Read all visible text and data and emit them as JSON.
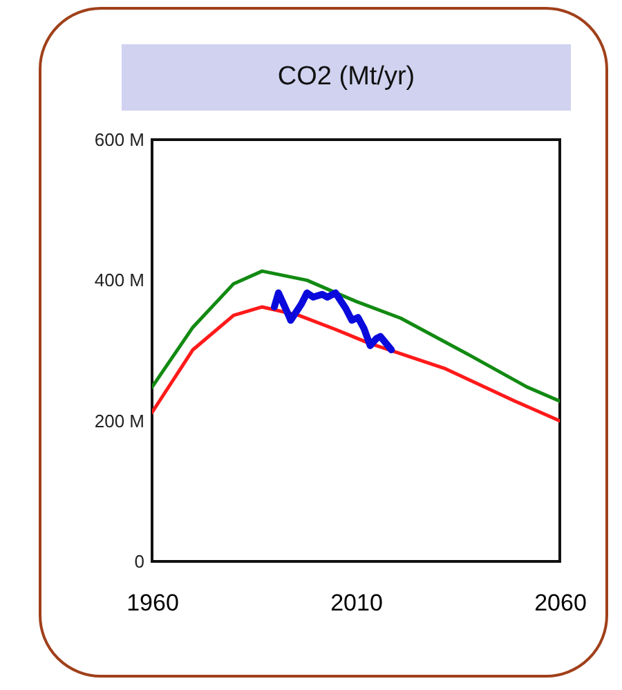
{
  "chart_data": {
    "type": "line",
    "title": "CO2 (Mt/yr)",
    "xlim": [
      1960,
      2060
    ],
    "xticks": [
      1960,
      2010,
      2060
    ],
    "ylim": [
      0,
      600
    ],
    "yticks": [
      {
        "value": 0,
        "label": "0"
      },
      {
        "value": 200,
        "label": "200 M"
      },
      {
        "value": 400,
        "label": "400 M"
      },
      {
        "value": 600,
        "label": "600 M"
      }
    ],
    "grid": false,
    "series": [
      {
        "color": "#128a12",
        "x": [
          1960,
          1970,
          1980,
          1987,
          1998,
          2010,
          2021,
          2038,
          2052,
          2060
        ],
        "values": [
          248,
          333,
          395,
          413,
          400,
          370,
          346,
          293,
          248,
          228
        ]
      },
      {
        "color": "#ff1a1a",
        "x": [
          1960,
          1970,
          1980,
          1987,
          1996,
          2005,
          2013,
          2032,
          2049,
          2060
        ],
        "values": [
          212,
          301,
          350,
          362,
          350,
          330,
          311,
          274,
          228,
          200
        ]
      },
      {
        "color": "#0a0adc",
        "x": [
          1990,
          1991,
          1993.5,
          1994,
          1996.6,
          1998,
          1999.5,
          2001.7,
          2003,
          2005,
          2007.5,
          2009,
          2010.5,
          2012,
          2013.5,
          2015,
          2016,
          2018.7
        ],
        "values": [
          362,
          382,
          350,
          343,
          366,
          382,
          376,
          380,
          376,
          382,
          360,
          343,
          347,
          331,
          307,
          317,
          320,
          301
        ]
      }
    ]
  }
}
